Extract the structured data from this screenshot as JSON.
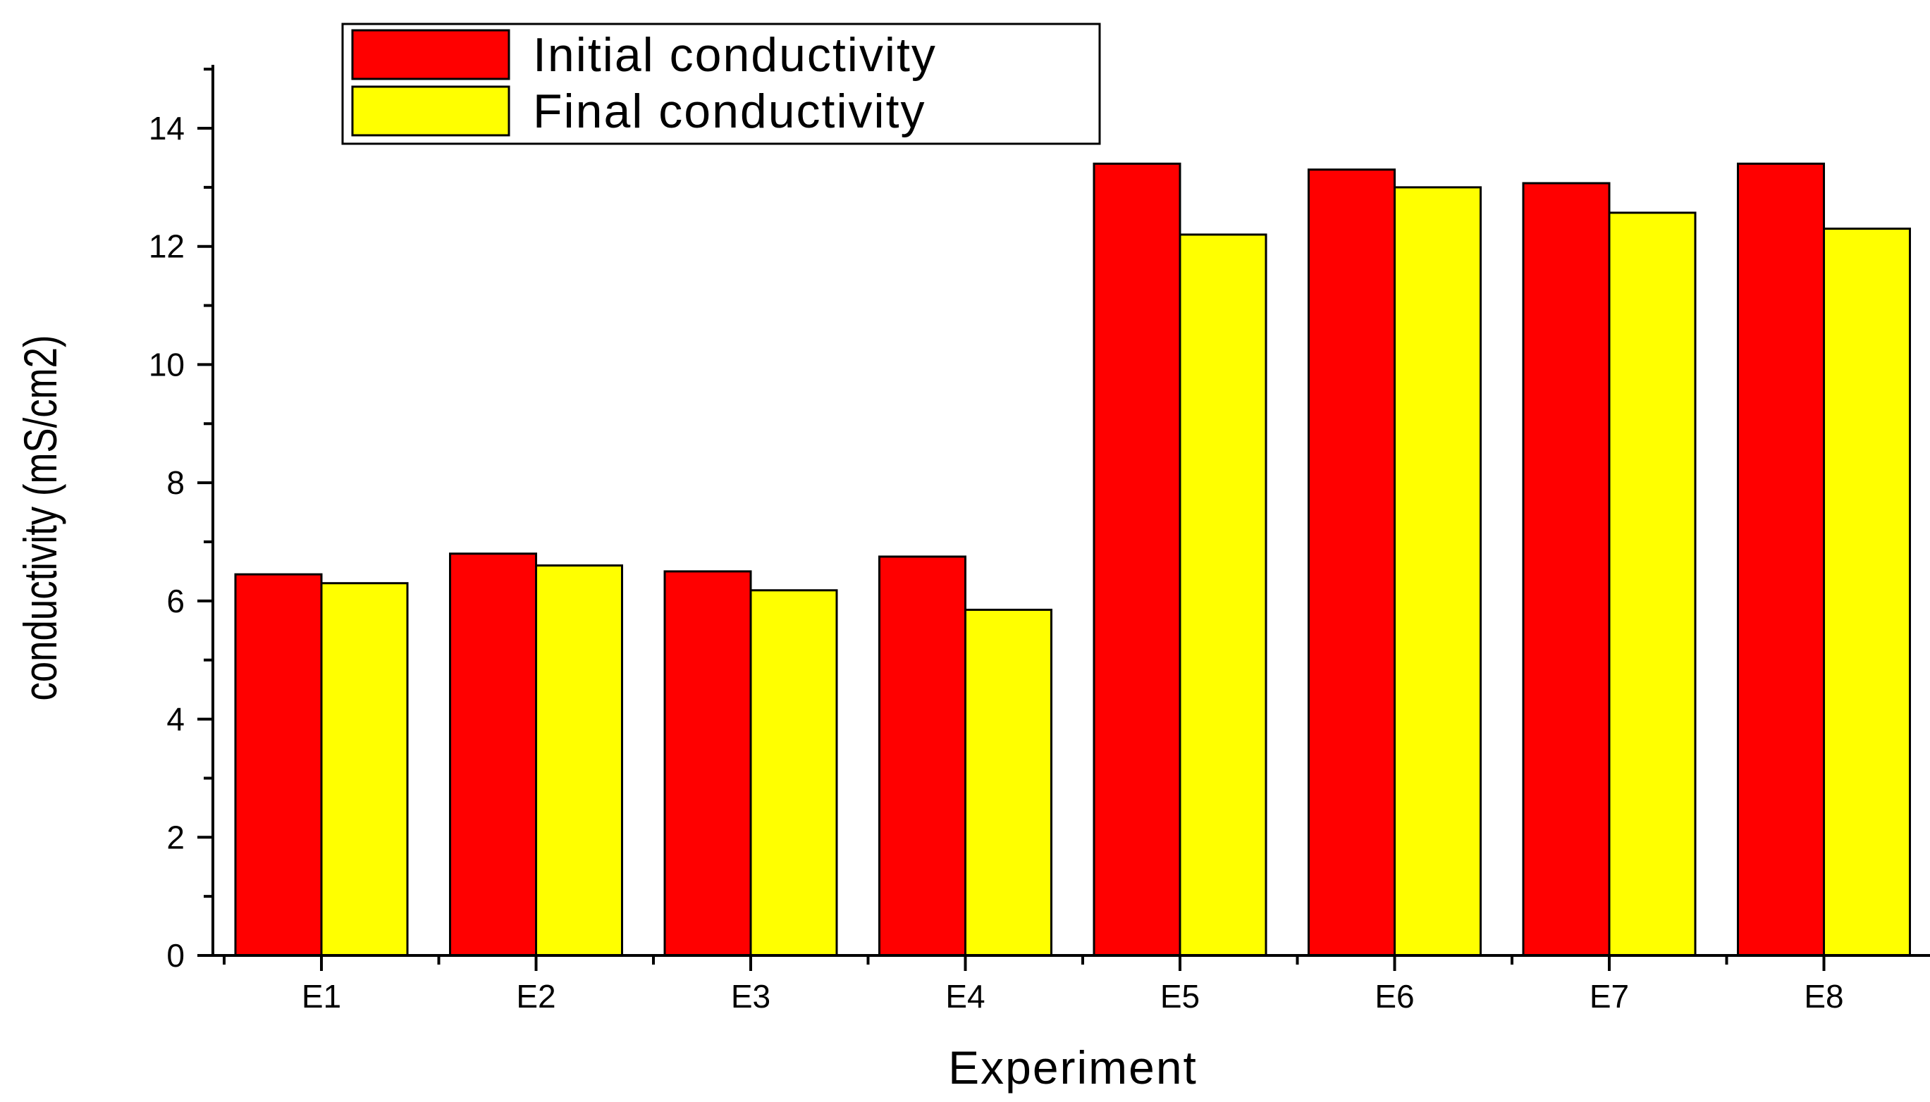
{
  "chart_data": {
    "type": "bar",
    "title": "",
    "xlabel": "Experiment",
    "ylabel": "conductivity (mS/cm2)",
    "categories": [
      "E1",
      "E2",
      "E3",
      "E4",
      "E5",
      "E6",
      "E7",
      "E8"
    ],
    "series": [
      {
        "name": "Initial conductivity",
        "color": "#ff0000",
        "values": [
          6.45,
          6.8,
          6.5,
          6.75,
          13.4,
          13.3,
          13.07,
          13.4
        ]
      },
      {
        "name": "Final conductivity",
        "color": "#ffff00",
        "values": [
          6.3,
          6.6,
          6.18,
          5.85,
          12.2,
          13.0,
          12.57,
          12.3
        ]
      }
    ],
    "ylim": [
      0,
      15
    ],
    "yticks": [
      0,
      2,
      4,
      6,
      8,
      10,
      12,
      14
    ],
    "legend": "top-left",
    "grid": false
  }
}
